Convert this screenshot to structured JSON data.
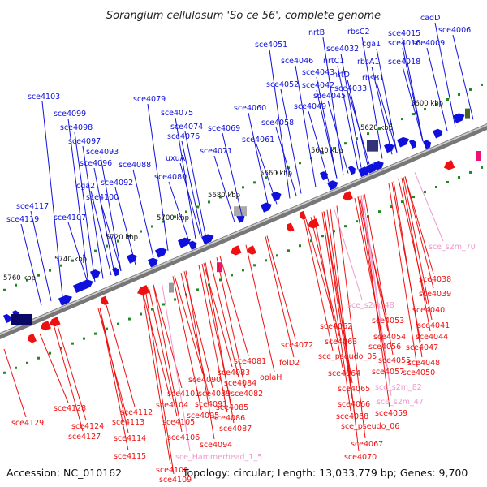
{
  "title": "Sorangium cellulosum 'So ce 56', complete genome",
  "footer": {
    "accession": "Accession: NC_010162",
    "summary": "Topology: circular; Length: 13,033,779 bp; Genes: 9,700"
  },
  "colors": {
    "forward": "#1010dd",
    "reverse": "#ee1111",
    "rna": "#ee99cc",
    "backbone": "#888888",
    "ticks": "#228822"
  },
  "ticks": [
    "5600 kbp",
    "5620 kbp",
    "5640 kbp",
    "5660 kbp",
    "5680 kbp",
    "5700 kbp",
    "5720 kbp",
    "5740 kbp",
    "5760 kbp"
  ],
  "forward_labels": [
    "cadD",
    "sce4006",
    "sce4009",
    "sce4015",
    "sce4016",
    "sce4018",
    "rbsC2",
    "cga1",
    "rbsA1",
    "rbsB1",
    "nrtB",
    "sce4032",
    "nrtC1",
    "nrtD",
    "sce4033",
    "sce4051",
    "sce4046",
    "sce4043",
    "sce4052",
    "sce4042",
    "sce4045",
    "sce4049",
    "sce4060",
    "sce4058",
    "sce4061",
    "sce4079",
    "sce4075",
    "sce4074",
    "sce4076",
    "sce4069",
    "sce4071",
    "uxuA",
    "sce4080",
    "sce4088",
    "sce4092",
    "sce4103",
    "sce4099",
    "sce4098",
    "sce4097",
    "sce4093",
    "sce4096",
    "cga2",
    "sce4100",
    "sce4117",
    "sce4119",
    "sce4107"
  ],
  "reverse_labels": [
    "sce4038",
    "sce4039",
    "sce4040",
    "sce4041",
    "sce4044",
    "sce4047",
    "sce4048",
    "sce4050",
    "sce4053",
    "sce4054",
    "sce4056",
    "sce4055",
    "sce4057",
    "sce4059",
    "sce4062",
    "sce4063",
    "sce_pseudo_05",
    "sce4064",
    "sce4065",
    "sce4066",
    "sce4068",
    "sce_pseudo_06",
    "sce4067",
    "sce4070",
    "sce4072",
    "folD2",
    "oplaH",
    "sce4081",
    "sce4083",
    "sce4084",
    "sce4082",
    "sce4085",
    "sce4086",
    "sce4087",
    "sce4090",
    "sce4089",
    "sce4091",
    "sce4095",
    "sce4094",
    "sce4101",
    "sce4104",
    "sce4105",
    "sce4106",
    "sce4112",
    "sce4113",
    "sce4114",
    "sce4115",
    "sce4108",
    "sce4109",
    "sce4128",
    "sce4124",
    "sce4127",
    "sce4129"
  ],
  "rna_labels": [
    "sce_s2m_70",
    "sce_s2m_48",
    "sce_s2m_82",
    "sce_s2m_47",
    "sce_Hammerhead_1_5"
  ]
}
